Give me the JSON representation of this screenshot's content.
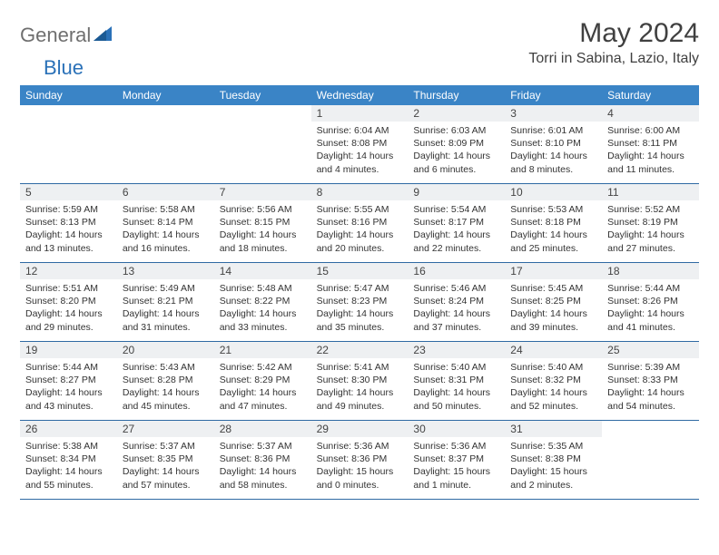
{
  "brand": {
    "text1": "General",
    "text2": "Blue"
  },
  "title": "May 2024",
  "location": "Torri in Sabina, Lazio, Italy",
  "colors": {
    "header_bg": "#3a84c6",
    "divider": "#2f6aa3",
    "daynum_bg": "#eef0f2",
    "logo_gray": "#6f6f6f",
    "logo_blue": "#2a71b8"
  },
  "day_labels": [
    "Sunday",
    "Monday",
    "Tuesday",
    "Wednesday",
    "Thursday",
    "Friday",
    "Saturday"
  ],
  "weeks": [
    [
      null,
      null,
      null,
      {
        "n": "1",
        "sr": "6:04 AM",
        "ss": "8:08 PM",
        "dl": "14 hours and 4 minutes."
      },
      {
        "n": "2",
        "sr": "6:03 AM",
        "ss": "8:09 PM",
        "dl": "14 hours and 6 minutes."
      },
      {
        "n": "3",
        "sr": "6:01 AM",
        "ss": "8:10 PM",
        "dl": "14 hours and 8 minutes."
      },
      {
        "n": "4",
        "sr": "6:00 AM",
        "ss": "8:11 PM",
        "dl": "14 hours and 11 minutes."
      }
    ],
    [
      {
        "n": "5",
        "sr": "5:59 AM",
        "ss": "8:13 PM",
        "dl": "14 hours and 13 minutes."
      },
      {
        "n": "6",
        "sr": "5:58 AM",
        "ss": "8:14 PM",
        "dl": "14 hours and 16 minutes."
      },
      {
        "n": "7",
        "sr": "5:56 AM",
        "ss": "8:15 PM",
        "dl": "14 hours and 18 minutes."
      },
      {
        "n": "8",
        "sr": "5:55 AM",
        "ss": "8:16 PM",
        "dl": "14 hours and 20 minutes."
      },
      {
        "n": "9",
        "sr": "5:54 AM",
        "ss": "8:17 PM",
        "dl": "14 hours and 22 minutes."
      },
      {
        "n": "10",
        "sr": "5:53 AM",
        "ss": "8:18 PM",
        "dl": "14 hours and 25 minutes."
      },
      {
        "n": "11",
        "sr": "5:52 AM",
        "ss": "8:19 PM",
        "dl": "14 hours and 27 minutes."
      }
    ],
    [
      {
        "n": "12",
        "sr": "5:51 AM",
        "ss": "8:20 PM",
        "dl": "14 hours and 29 minutes."
      },
      {
        "n": "13",
        "sr": "5:49 AM",
        "ss": "8:21 PM",
        "dl": "14 hours and 31 minutes."
      },
      {
        "n": "14",
        "sr": "5:48 AM",
        "ss": "8:22 PM",
        "dl": "14 hours and 33 minutes."
      },
      {
        "n": "15",
        "sr": "5:47 AM",
        "ss": "8:23 PM",
        "dl": "14 hours and 35 minutes."
      },
      {
        "n": "16",
        "sr": "5:46 AM",
        "ss": "8:24 PM",
        "dl": "14 hours and 37 minutes."
      },
      {
        "n": "17",
        "sr": "5:45 AM",
        "ss": "8:25 PM",
        "dl": "14 hours and 39 minutes."
      },
      {
        "n": "18",
        "sr": "5:44 AM",
        "ss": "8:26 PM",
        "dl": "14 hours and 41 minutes."
      }
    ],
    [
      {
        "n": "19",
        "sr": "5:44 AM",
        "ss": "8:27 PM",
        "dl": "14 hours and 43 minutes."
      },
      {
        "n": "20",
        "sr": "5:43 AM",
        "ss": "8:28 PM",
        "dl": "14 hours and 45 minutes."
      },
      {
        "n": "21",
        "sr": "5:42 AM",
        "ss": "8:29 PM",
        "dl": "14 hours and 47 minutes."
      },
      {
        "n": "22",
        "sr": "5:41 AM",
        "ss": "8:30 PM",
        "dl": "14 hours and 49 minutes."
      },
      {
        "n": "23",
        "sr": "5:40 AM",
        "ss": "8:31 PM",
        "dl": "14 hours and 50 minutes."
      },
      {
        "n": "24",
        "sr": "5:40 AM",
        "ss": "8:32 PM",
        "dl": "14 hours and 52 minutes."
      },
      {
        "n": "25",
        "sr": "5:39 AM",
        "ss": "8:33 PM",
        "dl": "14 hours and 54 minutes."
      }
    ],
    [
      {
        "n": "26",
        "sr": "5:38 AM",
        "ss": "8:34 PM",
        "dl": "14 hours and 55 minutes."
      },
      {
        "n": "27",
        "sr": "5:37 AM",
        "ss": "8:35 PM",
        "dl": "14 hours and 57 minutes."
      },
      {
        "n": "28",
        "sr": "5:37 AM",
        "ss": "8:36 PM",
        "dl": "14 hours and 58 minutes."
      },
      {
        "n": "29",
        "sr": "5:36 AM",
        "ss": "8:36 PM",
        "dl": "15 hours and 0 minutes."
      },
      {
        "n": "30",
        "sr": "5:36 AM",
        "ss": "8:37 PM",
        "dl": "15 hours and 1 minute."
      },
      {
        "n": "31",
        "sr": "5:35 AM",
        "ss": "8:38 PM",
        "dl": "15 hours and 2 minutes."
      },
      null
    ]
  ],
  "labels": {
    "sunrise": "Sunrise:",
    "sunset": "Sunset:",
    "daylight": "Daylight:"
  }
}
